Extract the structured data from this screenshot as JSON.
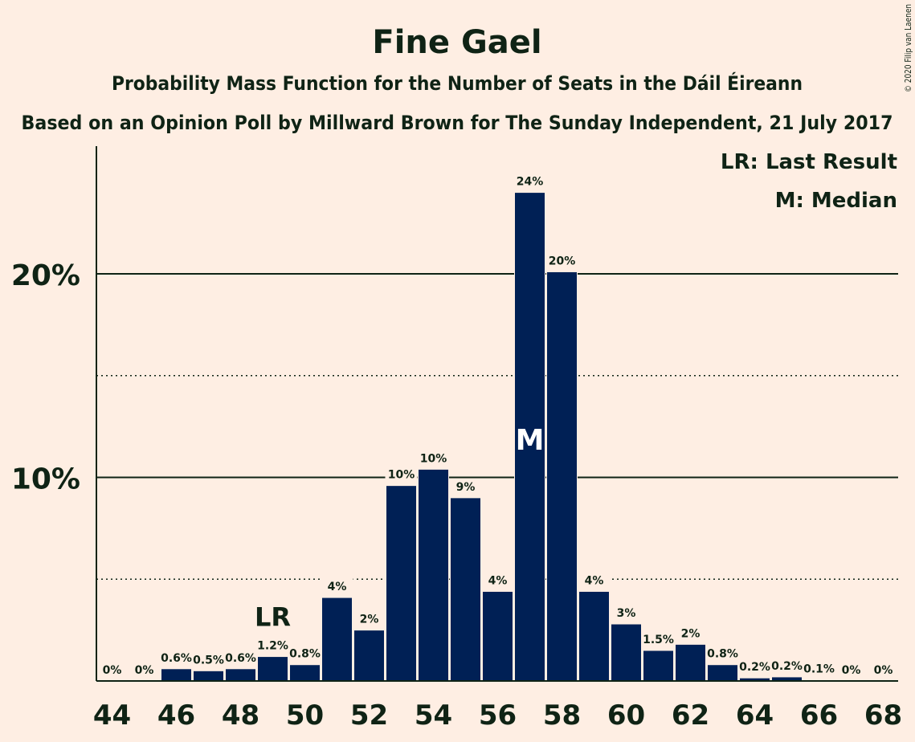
{
  "copyright": "© 2020 Filip van Laenen",
  "chart_data": {
    "type": "bar",
    "title": "Fine Gael",
    "subtitle": "Probability Mass Function for the Number of Seats in the Dáil Éireann",
    "subtitle2": "Based on an Opinion Poll by Millward Brown for The Sunday Independent, 21 July 2017",
    "legend": [
      "LR: Last Result",
      "M: Median"
    ],
    "legend_position": "top-right",
    "x": [
      44,
      45,
      46,
      47,
      48,
      49,
      50,
      51,
      52,
      53,
      54,
      55,
      56,
      57,
      58,
      59,
      60,
      61,
      62,
      63,
      64,
      65,
      66,
      67,
      68
    ],
    "values": [
      0,
      0,
      0.6,
      0.5,
      0.6,
      1.2,
      0.8,
      4.1,
      2.5,
      9.6,
      10.4,
      9.0,
      4.4,
      24.0,
      20.1,
      4.4,
      2.8,
      1.5,
      1.8,
      0.8,
      0.15,
      0.2,
      0.05,
      0,
      0
    ],
    "data_labels": [
      "0%",
      "0%",
      "0.6%",
      "0.5%",
      "0.6%",
      "1.2%",
      "0.8%",
      "4%",
      "2%",
      "10%",
      "10%",
      "9%",
      "4%",
      "24%",
      "20%",
      "4%",
      "3%",
      "1.5%",
      "2%",
      "0.8%",
      "0.2%",
      "0.2%",
      "0.1%",
      "0%",
      "0%"
    ],
    "x_ticks": [
      "44",
      "46",
      "48",
      "50",
      "52",
      "54",
      "56",
      "58",
      "60",
      "62",
      "64",
      "66",
      "68"
    ],
    "y_ticks": [
      {
        "value": 10,
        "label": "10%"
      },
      {
        "value": 20,
        "label": "20%"
      }
    ],
    "dotted_lines": [
      5,
      15
    ],
    "last_result": {
      "x": 49,
      "label": "LR"
    },
    "median": {
      "x": 57,
      "label": "M"
    },
    "ylim": [
      0,
      26.2
    ],
    "bar_color": "#002055",
    "background": "#feeee3"
  }
}
